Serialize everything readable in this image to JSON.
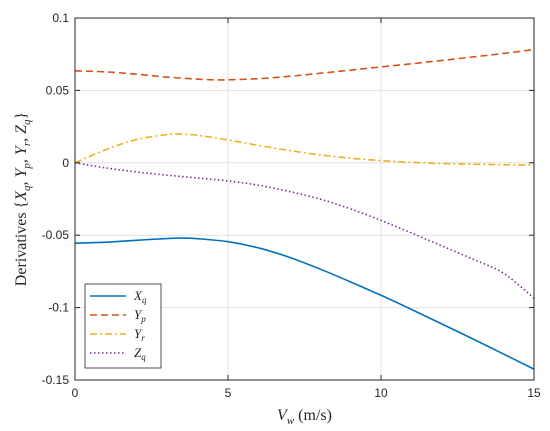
{
  "chart_data": {
    "type": "line",
    "xlabel": "V_w (m/s)",
    "ylabel": "Derivatives {X_q, Y_p, Y_r, Z_q}",
    "xlim": [
      0,
      15
    ],
    "ylim": [
      -0.15,
      0.1
    ],
    "xticks": [
      0,
      5,
      10,
      15
    ],
    "xtick_labels": [
      "0",
      "5",
      "10",
      "15"
    ],
    "yticks": [
      -0.15,
      -0.1,
      -0.05,
      0,
      0.05,
      0.1
    ],
    "ytick_labels": [
      "-0.15",
      "-0.1",
      "-0.05",
      "0",
      "0.05",
      "0.1"
    ],
    "grid": true,
    "legend_position": "bottom-left",
    "series": [
      {
        "name": "X_q",
        "color": "#0072BD",
        "style": "solid",
        "x": [
          0,
          1,
          2,
          3,
          3.5,
          4,
          5,
          6,
          7,
          8,
          9,
          10,
          11,
          12,
          13,
          14,
          15
        ],
        "y": [
          -0.0555,
          -0.0548,
          -0.0535,
          -0.0523,
          -0.052,
          -0.0524,
          -0.0545,
          -0.0588,
          -0.0652,
          -0.0733,
          -0.0822,
          -0.0915,
          -0.1013,
          -0.1114,
          -0.1216,
          -0.132,
          -0.1425
        ]
      },
      {
        "name": "Y_p",
        "color": "#D95319",
        "style": "dashed",
        "x": [
          0,
          1,
          2,
          3,
          4,
          4.5,
          5,
          6,
          7,
          8,
          9,
          10,
          11,
          12,
          13,
          14,
          15
        ],
        "y": [
          0.0635,
          0.0628,
          0.0612,
          0.0592,
          0.0578,
          0.0573,
          0.0573,
          0.0581,
          0.0597,
          0.0618,
          0.064,
          0.0662,
          0.0684,
          0.0707,
          0.0731,
          0.0755,
          0.0782
        ]
      },
      {
        "name": "Y_r",
        "color": "#EDB120",
        "style": "dashdot",
        "x": [
          0,
          1,
          2,
          3,
          3.5,
          4,
          5,
          6,
          7,
          8,
          9,
          10,
          11,
          12,
          13,
          14,
          15
        ],
        "y": [
          0.0,
          0.009,
          0.016,
          0.0195,
          0.0198,
          0.019,
          0.0158,
          0.012,
          0.0085,
          0.0055,
          0.0032,
          0.0015,
          0.0003,
          -0.0005,
          -0.001,
          -0.0013,
          -0.0015
        ]
      },
      {
        "name": "Z_q",
        "color": "#7E2F8E",
        "style": "dotted",
        "x": [
          0,
          1,
          2,
          3,
          4,
          5,
          6,
          7,
          8,
          9,
          10,
          11,
          12,
          13,
          14,
          15
        ],
        "y": [
          0.0,
          -0.0035,
          -0.0063,
          -0.0085,
          -0.0105,
          -0.0125,
          -0.0155,
          -0.0198,
          -0.025,
          -0.0318,
          -0.0398,
          -0.0485,
          -0.0575,
          -0.0665,
          -0.0762,
          -0.0935
        ]
      }
    ]
  }
}
